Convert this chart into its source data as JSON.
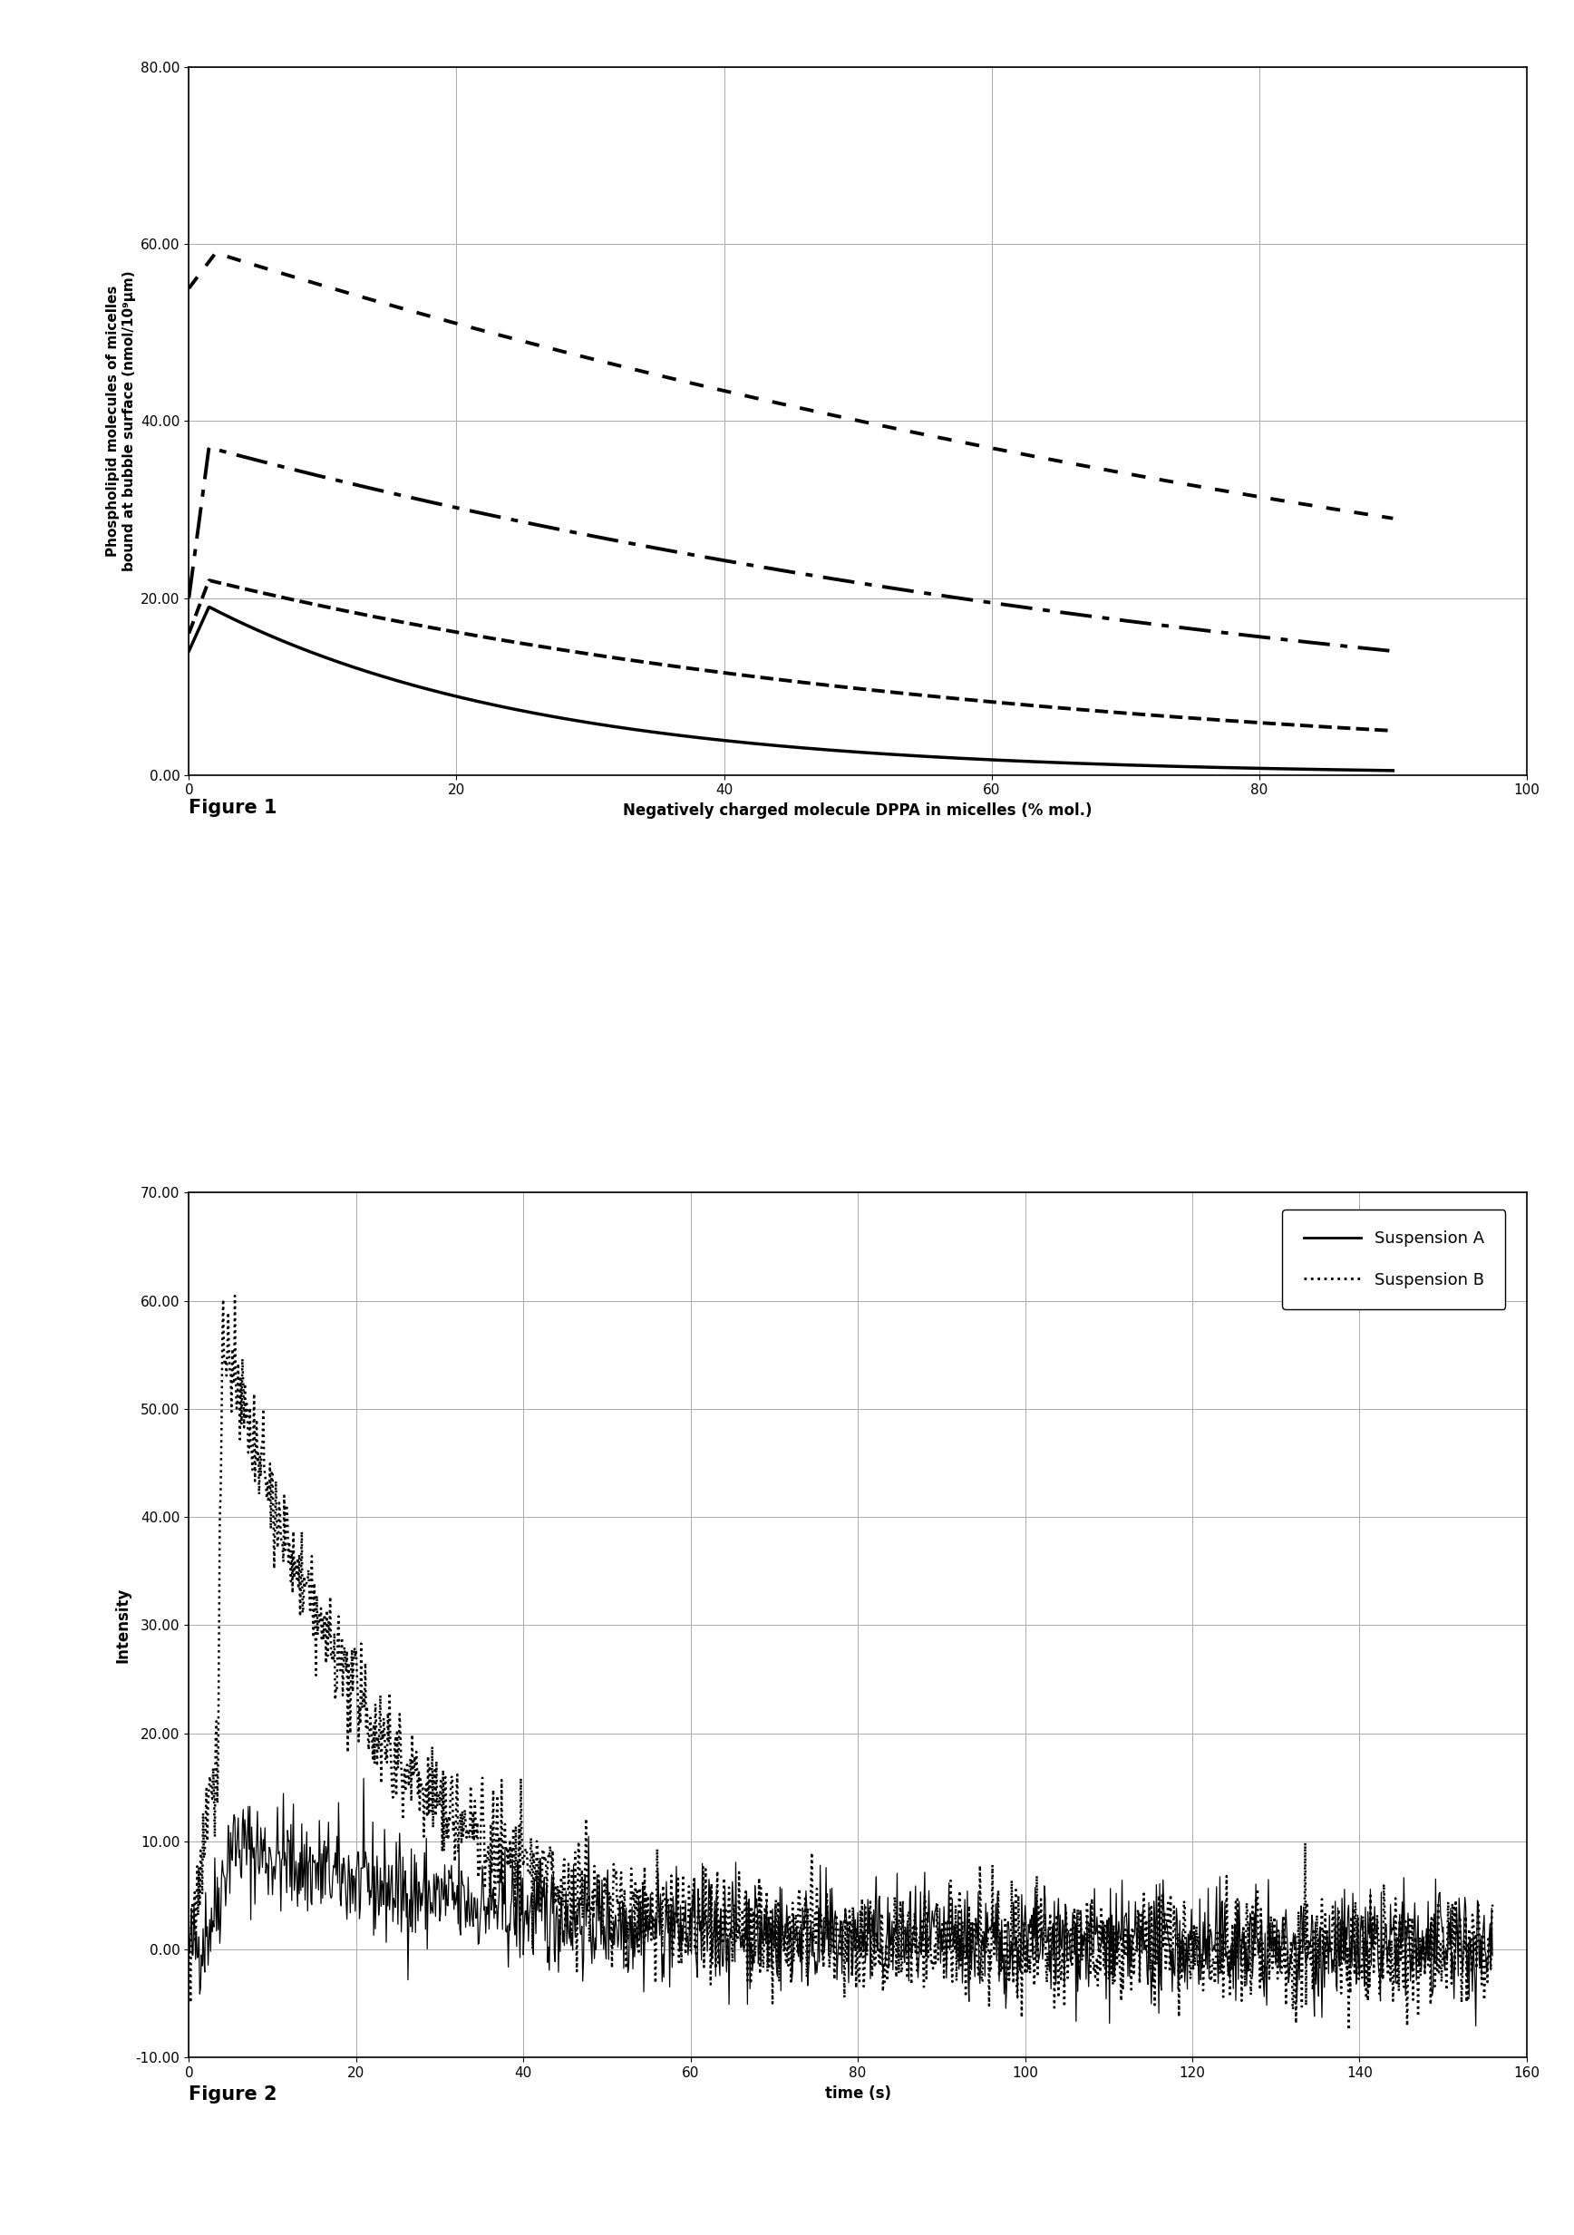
{
  "fig1": {
    "xlabel": "Negatively charged molecule DPPA in micelles (% mol.)",
    "ylabel": "Phospholipid molecules of micelles\nbound at bubble surface (nmol/10⁹μm)",
    "xlim": [
      0,
      100
    ],
    "ylim": [
      0,
      80
    ],
    "xticks": [
      0,
      20,
      40,
      60,
      80,
      100
    ],
    "ytick_labels": [
      "0.00",
      "20.00",
      "40.00",
      "60.00",
      "80.00"
    ],
    "ytick_vals": [
      0,
      20,
      40,
      60,
      80
    ],
    "curves": [
      {
        "name": "dotted",
        "start": 55,
        "peak_x": 2,
        "peak_y": 59,
        "end_y": 29,
        "style": "dotted",
        "lw": 2.8
      },
      {
        "name": "dashdot",
        "start": 20,
        "peak_x": 1.5,
        "peak_y": 37,
        "end_y": 14,
        "style": "dashdot",
        "lw": 2.8
      },
      {
        "name": "dashed",
        "start": 16,
        "peak_x": 1.5,
        "peak_y": 22,
        "end_y": 5,
        "style": "dashed",
        "lw": 2.8
      },
      {
        "name": "solid",
        "start": 14,
        "peak_x": 1.5,
        "peak_y": 19,
        "end_y": 0.5,
        "style": "solid",
        "lw": 2.5
      }
    ]
  },
  "fig2": {
    "xlabel": "time (s)",
    "ylabel": "Intensity",
    "xlim": [
      0,
      160
    ],
    "ylim": [
      -10,
      70
    ],
    "xticks": [
      0,
      20,
      40,
      60,
      80,
      100,
      120,
      140,
      160
    ],
    "ytick_vals": [
      -10,
      0,
      10,
      20,
      30,
      40,
      50,
      60,
      70
    ],
    "ytick_labels": [
      "-10.00",
      "0.00",
      "10.00",
      "20.00",
      "30.00",
      "40.00",
      "50.00",
      "60.00",
      "70.00"
    ],
    "legend_labels": [
      "Suspension A",
      "Suspension B"
    ],
    "susp_a": {
      "peak_t": 5,
      "peak_val": 10,
      "noise": 2.5,
      "decay": 0.03
    },
    "susp_b": {
      "peak_t": 4,
      "peak_val": 57,
      "noise": 2.5,
      "decay": 0.055
    }
  },
  "figure1_label": "Figure 1",
  "figure2_label": "Figure 2",
  "bg_color": "#ffffff",
  "grid_color": "#aaaaaa"
}
